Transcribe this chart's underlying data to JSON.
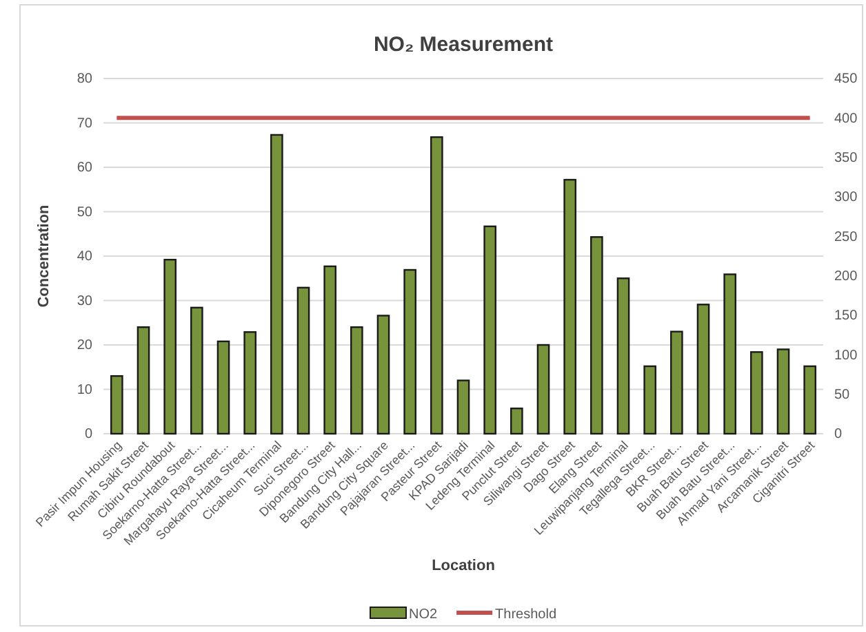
{
  "chart_data": {
    "type": "bar",
    "title": "NO₂ Measurement",
    "xlabel": "Location",
    "ylabel": "Concentration",
    "categories": [
      "Pasir Impun Housing",
      "Rumah Sakit Street",
      "Cibiru Roundabout",
      "Soekarno-Hatta Street...",
      "Margahayu Raya Street...",
      "Soekarno-Hatta Street...",
      "Cicaheum Terminal",
      "Suci Street...",
      "Diponegoro Street",
      "Bandung City Hall...",
      "Bandung City Square",
      "Pajajaran Street...",
      "Pasteur Street",
      "KPAD Sarijadi",
      "Ledeng Terminal",
      "Punclut Street",
      "Siliwangi Street",
      "Dago Street",
      "Elang Street",
      "Leuwipanjang Terminal",
      "Tegallega Street...",
      "BKR Street...",
      "Buah Batu Street",
      "Buah Batu Street...",
      "Ahmad Yani Street...",
      "Arcamanik Street",
      "Ciganitri Street"
    ],
    "series": [
      {
        "name": "NO2",
        "color": "#77933c",
        "values": [
          13,
          24,
          39.2,
          28.4,
          20.8,
          22.9,
          67.3,
          32.9,
          37.7,
          24,
          26.6,
          36.9,
          66.8,
          12,
          46.7,
          5.7,
          20,
          57.2,
          44.3,
          35,
          15.2,
          23,
          29.1,
          35.9,
          18.4,
          19,
          15.2
        ]
      },
      {
        "name": "Threshold",
        "type": "line",
        "axis": "y2",
        "color": "#c0504d",
        "values": [
          400,
          400,
          400,
          400,
          400,
          400,
          400,
          400,
          400,
          400,
          400,
          400,
          400,
          400,
          400,
          400,
          400,
          400,
          400,
          400,
          400,
          400,
          400,
          400,
          400,
          400,
          400
        ]
      }
    ],
    "ylim": [
      0,
      80
    ],
    "yticks": [
      0,
      10,
      20,
      30,
      40,
      50,
      60,
      70,
      80
    ],
    "y2lim": [
      0,
      450
    ],
    "y2ticks": [
      0,
      50,
      100,
      150,
      200,
      250,
      300,
      350,
      400,
      450
    ],
    "grid": "y",
    "legend": "bottom"
  }
}
